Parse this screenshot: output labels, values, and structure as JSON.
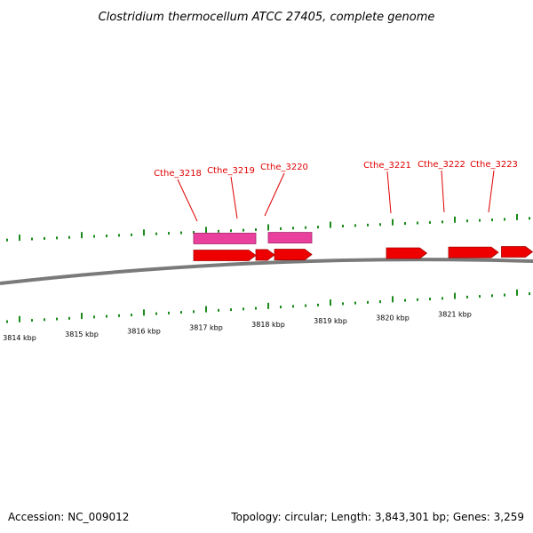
{
  "title": "Clostridium thermocellum ATCC 27405, complete genome",
  "accession": "Accession: NC_009012",
  "summary": "Topology: circular; Length: 3,843,301 bp; Genes: 3,259",
  "colors": {
    "backbone": "#7a7a7a",
    "tick": "#1a8a1a",
    "gene_forward": "#ee0000",
    "gene_other": "#e8409c",
    "label": "#e00000"
  },
  "scale_labels": [
    "3814 kbp",
    "3815 kbp",
    "3816 kbp",
    "3817 kbp",
    "3818 kbp",
    "3819 kbp",
    "3820 kbp",
    "3821 kbp"
  ],
  "gene_labels": [
    "Cthe_3218",
    "Cthe_3219",
    "Cthe_3220",
    "Cthe_3221",
    "Cthe_3222",
    "Cthe_3223"
  ],
  "genes": [
    {
      "track": "forward",
      "start_kbp": 3816.8,
      "end_kbp": 3817.8
    },
    {
      "track": "forward",
      "start_kbp": 3817.8,
      "end_kbp": 3818.1
    },
    {
      "track": "forward",
      "start_kbp": 3818.1,
      "end_kbp": 3818.7
    },
    {
      "track": "forward",
      "start_kbp": 3819.9,
      "end_kbp": 3820.55
    },
    {
      "track": "forward",
      "start_kbp": 3820.9,
      "end_kbp": 3821.7
    },
    {
      "track": "forward",
      "start_kbp": 3821.75,
      "end_kbp": 3822.25
    },
    {
      "track": "other",
      "start_kbp": 3816.8,
      "end_kbp": 3817.8
    },
    {
      "track": "other",
      "start_kbp": 3818.0,
      "end_kbp": 3818.7
    }
  ]
}
